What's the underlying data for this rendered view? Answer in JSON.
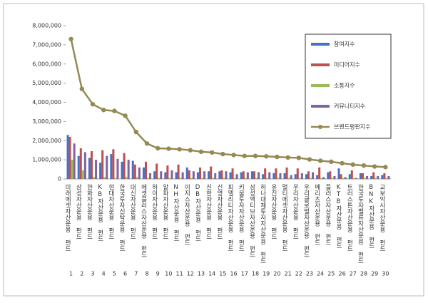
{
  "chart_data": {
    "type": "bar",
    "categories": [
      "미래에셋자산운용 펀드",
      "삼성자산운용 펀드",
      "한화자산운용 펀드",
      "KB자산운용 펀드",
      "현대자산운용 펀드",
      "한국투자신탁운용 펀드",
      "대신자산운용 펀드",
      "에셋플러스자산운용 펀드",
      "하이자산운용 펀드",
      "알파자산운용 펀드",
      "NH자산운용 펀드",
      "이지스자산운용 펀드",
      "DB자산운용 펀드",
      "신한자산운용 펀드",
      "신영자산운용 펀드",
      "피델리티자산운용 펀드",
      "키움투자자산운용 펀드",
      "삼성액티브자산운용 펀드",
      "하나대체투자자산운용 펀드",
      "유진자산운용 펀드",
      "멀티에셋자산운용 펀드",
      "우리자산운용 펀드",
      "우리글로벌자산운용 펀드",
      "메리츠자산운용 펀드",
      "플러스자산운용 펀드",
      "KTB자산운용 펀드",
      "트러스톤자산운용 펀드",
      "한국투자밸류자산운용 펀드",
      "BNK자산운용 펀드",
      "교보악사자산운용 펀드"
    ],
    "category_numbers": [
      1,
      2,
      3,
      4,
      5,
      6,
      7,
      8,
      9,
      10,
      11,
      12,
      13,
      14,
      15,
      16,
      17,
      18,
      19,
      20,
      21,
      22,
      23,
      24,
      25,
      26,
      27,
      28,
      29,
      30
    ],
    "series": [
      {
        "name": "참여지수",
        "color": "#4472c4",
        "values": [
          2300000,
          1200000,
          1100000,
          850000,
          1300000,
          900000,
          950000,
          600000,
          400000,
          350000,
          350000,
          600000,
          350000,
          400000,
          400000,
          350000,
          350000,
          400000,
          250000,
          300000,
          300000,
          250000,
          250000,
          200000,
          350000,
          550000,
          250000,
          300000,
          150000,
          200000
        ]
      },
      {
        "name": "미디어지수",
        "color": "#c0504d",
        "values": [
          2200000,
          1600000,
          1450000,
          1500000,
          1550000,
          1350000,
          750000,
          900000,
          800000,
          700000,
          750000,
          450000,
          600000,
          650000,
          450000,
          550000,
          400000,
          400000,
          550000,
          550000,
          600000,
          550000,
          400000,
          600000,
          400000,
          250000,
          450000,
          300000,
          350000,
          300000
        ]
      },
      {
        "name": "소통지수",
        "color": "#9bbb59",
        "values": [
          1000000,
          450000,
          100000,
          100000,
          50000,
          100000,
          100000,
          50000,
          50000,
          50000,
          50000,
          50000,
          50000,
          50000,
          50000,
          50000,
          50000,
          50000,
          50000,
          50000,
          50000,
          50000,
          50000,
          50000,
          50000,
          50000,
          50000,
          50000,
          50000,
          50000
        ]
      },
      {
        "name": "커뮤니티지수",
        "color": "#8064a2",
        "values": [
          1850000,
          1400000,
          1000000,
          1200000,
          1050000,
          1000000,
          600000,
          300000,
          400000,
          450000,
          350000,
          400000,
          400000,
          300000,
          400000,
          250000,
          350000,
          350000,
          350000,
          300000,
          200000,
          300000,
          350000,
          100000,
          150000,
          100000,
          50000,
          150000,
          150000,
          150000
        ]
      },
      {
        "name": "브랜드평판지수",
        "color": "#948a54",
        "type": "line",
        "values": [
          7300000,
          4700000,
          3900000,
          3600000,
          3550000,
          3300000,
          2450000,
          1850000,
          1600000,
          1580000,
          1550000,
          1500000,
          1420000,
          1380000,
          1300000,
          1250000,
          1200000,
          1200000,
          1180000,
          1150000,
          1120000,
          1100000,
          1020000,
          950000,
          900000,
          820000,
          750000,
          700000,
          650000,
          620000
        ]
      }
    ],
    "ylim": [
      0,
      8000000
    ],
    "yticks": [
      {
        "value": 0,
        "label": "0"
      },
      {
        "value": 1000000,
        "label": "1,000,000"
      },
      {
        "value": 2000000,
        "label": "2,000,000"
      },
      {
        "value": 3000000,
        "label": "3,000,000"
      },
      {
        "value": 4000000,
        "label": "4,000,000"
      },
      {
        "value": 5000000,
        "label": "5,000,000"
      },
      {
        "value": 6000000,
        "label": "6,000,000"
      },
      {
        "value": 7000000,
        "label": "7,000,000"
      },
      {
        "value": 8000000,
        "label": "8,000,000"
      }
    ],
    "legend": "upper right"
  }
}
